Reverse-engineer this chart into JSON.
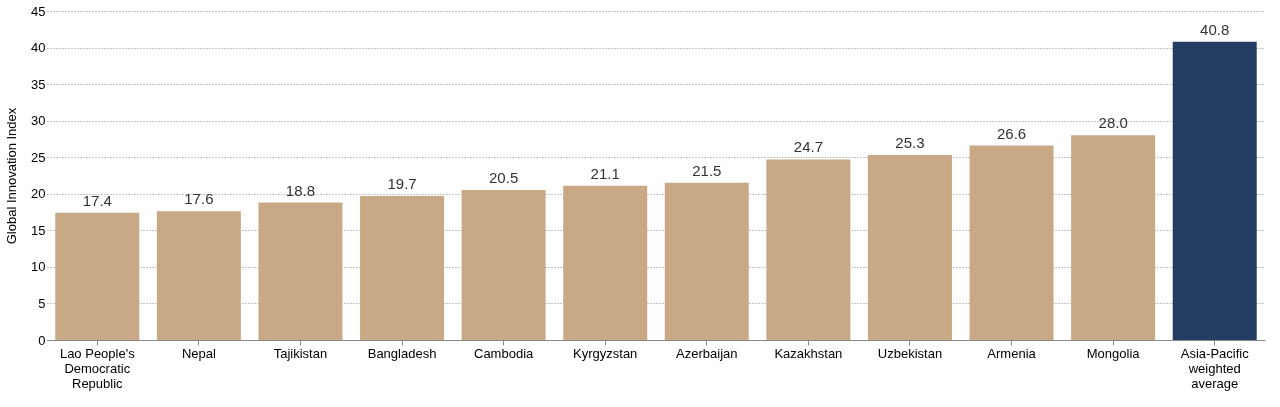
{
  "chart_data": {
    "type": "bar",
    "ylabel": "Global Innovation Index",
    "categories": [
      "Lao People's Democratic Republic",
      "Nepal",
      "Tajikistan",
      "Bangladesh",
      "Cambodia",
      "Kyrgyzstan",
      "Azerbaijan",
      "Kazakhstan",
      "Uzbekistan",
      "Armenia",
      "Mongolia",
      "Asia-Pacific weighted average"
    ],
    "values": [
      17.4,
      17.6,
      18.8,
      19.7,
      20.5,
      21.1,
      21.5,
      24.7,
      25.3,
      26.6,
      28.0,
      40.8
    ],
    "value_labels": [
      "17.4",
      "17.6",
      "18.8",
      "19.7",
      "20.5",
      "21.1",
      "21.5",
      "24.7",
      "25.3",
      "26.6",
      "28.0",
      "40.8"
    ],
    "colors": [
      "#c9a886",
      "#c9a886",
      "#c9a886",
      "#c9a886",
      "#c9a886",
      "#c9a886",
      "#c9a886",
      "#c9a886",
      "#c9a886",
      "#c9a886",
      "#c9a886",
      "#243d62"
    ],
    "ylim": [
      0,
      45
    ],
    "yticks": [
      0,
      5,
      10,
      15,
      20,
      25,
      30,
      35,
      40,
      45
    ],
    "grid": "y"
  }
}
